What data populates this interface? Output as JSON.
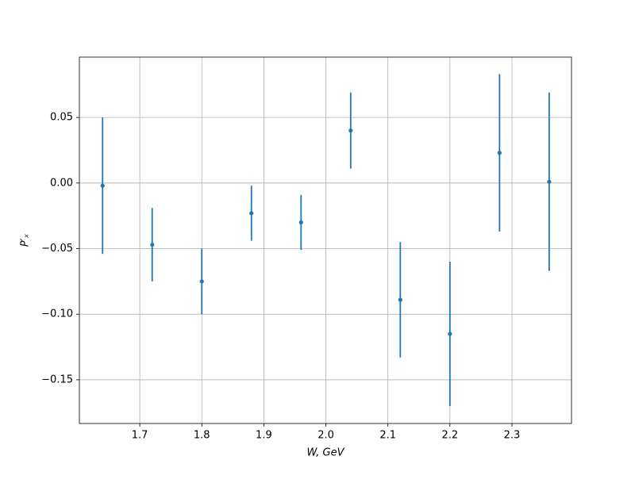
{
  "chart_data": {
    "type": "errorbar",
    "x_label": "W, GeV",
    "y_label": "P′ₓ",
    "x": [
      1.64,
      1.72,
      1.8,
      1.88,
      1.96,
      2.04,
      2.12,
      2.2,
      2.28,
      2.36
    ],
    "series": [
      {
        "color": "#1f77b4",
        "values": [
          -0.002,
          -0.047,
          -0.075,
          -0.023,
          -0.03,
          0.04,
          -0.089,
          -0.115,
          0.023,
          0.001
        ],
        "errors": [
          0.052,
          0.028,
          0.025,
          0.021,
          0.021,
          0.029,
          0.044,
          0.055,
          0.06,
          0.068
        ]
      }
    ],
    "xlim": [
      1.6026,
      2.396
    ],
    "ylim": [
      -0.1833,
      0.096
    ],
    "xticks": [
      1.7,
      1.8,
      1.9,
      {
        "value": 2.0,
        "label": "2.0"
      },
      2.1,
      2.2,
      2.3
    ],
    "yticks": [
      {
        "value": -0.15,
        "label": "−0.15"
      },
      {
        "value": -0.1,
        "label": "−0.10"
      },
      {
        "value": -0.05,
        "label": "−0.05"
      },
      {
        "value": 0.0,
        "label": "0.00"
      },
      0.05
    ],
    "grid": true
  }
}
